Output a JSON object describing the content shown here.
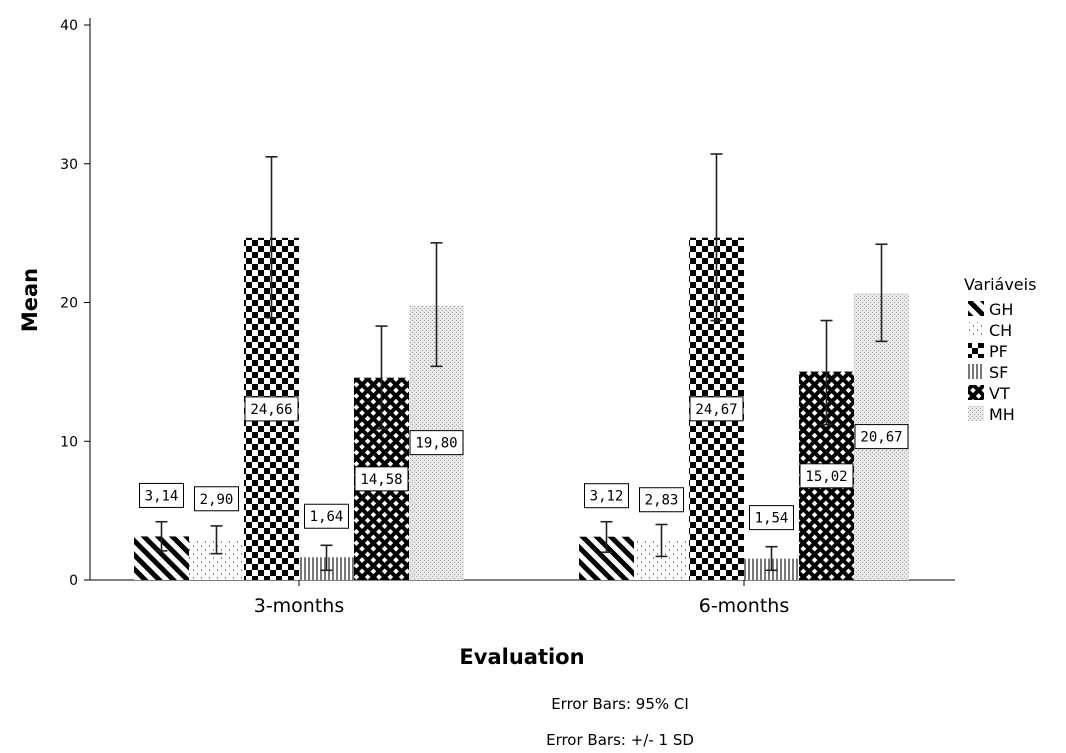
{
  "chart_data": {
    "type": "bar",
    "categories": [
      "3-months",
      "6-months"
    ],
    "series": [
      {
        "name": "GH",
        "values": [
          3.14,
          3.12
        ],
        "labels": [
          "3,14",
          "3,12"
        ],
        "error_low": [
          2.1,
          2.0
        ],
        "error_high": [
          4.2,
          4.2
        ]
      },
      {
        "name": "CH",
        "values": [
          2.9,
          2.83
        ],
        "labels": [
          "2,90",
          "2,83"
        ],
        "error_low": [
          1.9,
          1.7
        ],
        "error_high": [
          3.9,
          4.0
        ]
      },
      {
        "name": "PF",
        "values": [
          24.66,
          24.67
        ],
        "labels": [
          "24,66",
          "24,67"
        ],
        "error_low": [
          18.9,
          18.7
        ],
        "error_high": [
          30.5,
          30.7
        ]
      },
      {
        "name": "SF",
        "values": [
          1.64,
          1.54
        ],
        "labels": [
          "1,64",
          "1,54"
        ],
        "error_low": [
          0.7,
          0.7
        ],
        "error_high": [
          2.5,
          2.4
        ]
      },
      {
        "name": "VT",
        "values": [
          14.58,
          15.02
        ],
        "labels": [
          "14,58",
          "15,02"
        ],
        "error_low": [
          10.9,
          11.2
        ],
        "error_high": [
          18.3,
          18.7
        ]
      },
      {
        "name": "MH",
        "values": [
          19.8,
          20.67
        ],
        "labels": [
          "19,80",
          "20,67"
        ],
        "error_low": [
          15.4,
          17.2
        ],
        "error_high": [
          24.3,
          24.2
        ]
      }
    ],
    "xlabel": "Evaluation",
    "ylabel": "Mean",
    "ylim": [
      0,
      40
    ],
    "yticks": [
      0,
      10,
      20,
      30,
      40
    ],
    "legend_title": "Variáveis",
    "legend_position": "right",
    "grid": false,
    "notes": [
      "Error Bars: 95% CI",
      "Error Bars: +/- 1 SD"
    ]
  }
}
